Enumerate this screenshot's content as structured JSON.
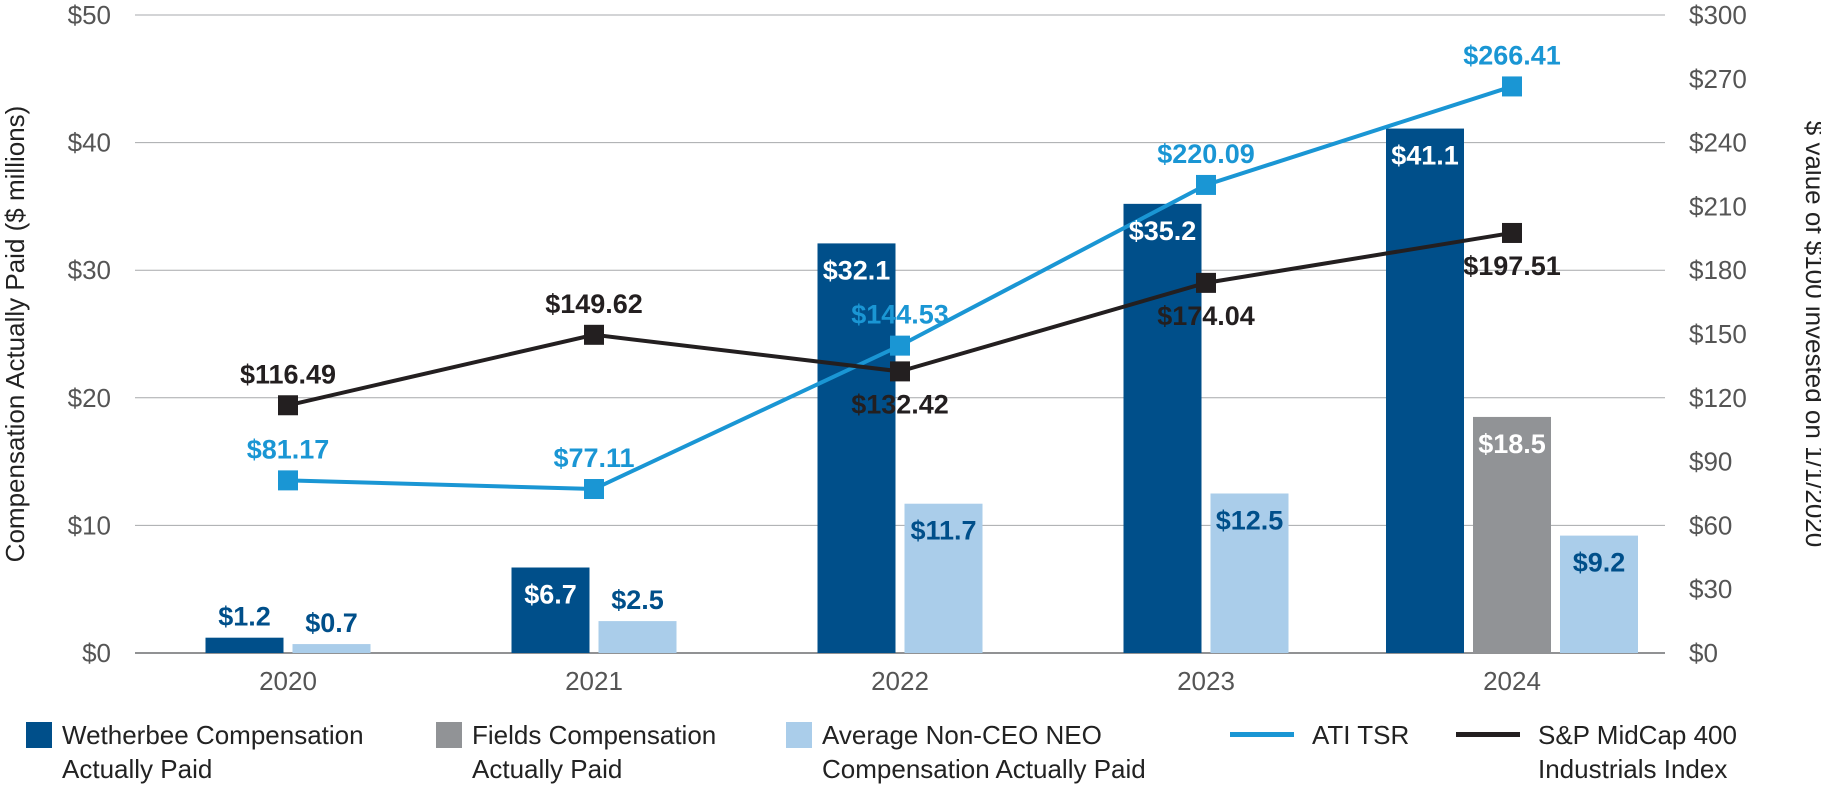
{
  "chart_data": {
    "type": "bar",
    "categories": [
      "2020",
      "2021",
      "2022",
      "2023",
      "2024"
    ],
    "y_left": {
      "label": "Compensation Actually Paid ($ millions)",
      "range": [
        0,
        50
      ],
      "ticks": [
        0,
        10,
        20,
        30,
        40,
        50
      ],
      "tick_labels": [
        "$0",
        "$10",
        "$20",
        "$30",
        "$40",
        "$50"
      ]
    },
    "y_right": {
      "label": "$ value of $100 invested on 1/1/2020",
      "range": [
        0,
        300
      ],
      "ticks": [
        0,
        30,
        60,
        90,
        120,
        150,
        180,
        210,
        240,
        270,
        300
      ],
      "tick_labels": [
        "$0",
        "$30",
        "$60",
        "$90",
        "$120",
        "$150",
        "$180",
        "$210",
        "$240",
        "$270",
        "$300"
      ]
    },
    "grid": true,
    "bar_series": [
      {
        "name": "Wetherbee Compensation Actually Paid",
        "color": "#004f8a",
        "label_color_inside": "#ffffff",
        "label_color_outside": "#004f8a",
        "values": [
          1.2,
          6.7,
          32.1,
          35.2,
          41.1
        ],
        "labels": [
          "$1.2",
          "$6.7",
          "$32.1",
          "$35.2",
          "$41.1"
        ]
      },
      {
        "name": "Fields Compensation Actually Paid",
        "color": "#919396",
        "label_color_inside": "#ffffff",
        "label_color_outside": "#919396",
        "values": [
          null,
          null,
          null,
          null,
          18.5
        ],
        "labels": [
          "",
          "",
          "",
          "",
          "$18.5"
        ]
      },
      {
        "name": "Average Non-CEO NEO Compensation Actually Paid",
        "color": "#aacdea",
        "label_color_inside": "#004f8a",
        "label_color_outside": "#004f8a",
        "values": [
          0.7,
          2.5,
          11.7,
          12.5,
          9.2
        ],
        "labels": [
          "$0.7",
          "$2.5",
          "$11.7",
          "$12.5",
          "$9.2"
        ]
      }
    ],
    "line_series": [
      {
        "name": "ATI TSR",
        "color": "#1a96d4",
        "axis": "right",
        "values": [
          81.17,
          77.11,
          144.53,
          220.09,
          266.41
        ],
        "labels": [
          "$81.17",
          "$77.11",
          "$144.53",
          "$220.09",
          "$266.41"
        ]
      },
      {
        "name": "S&P MidCap 400 Industrials Index",
        "color": "#231f20",
        "axis": "right",
        "values": [
          116.49,
          149.62,
          132.42,
          174.04,
          197.51
        ],
        "labels": [
          "$116.49",
          "$149.62",
          "$132.42",
          "$174.04",
          "$197.51"
        ]
      }
    ],
    "legend_position": "bottom"
  },
  "legend": [
    {
      "type": "swatch",
      "color": "#004f8a",
      "line1": "Wetherbee Compensation",
      "line2": "Actually Paid"
    },
    {
      "type": "swatch",
      "color": "#919396",
      "line1": "Fields Compensation",
      "line2": "Actually Paid"
    },
    {
      "type": "swatch",
      "color": "#aacdea",
      "line1": "Average Non-CEO NEO",
      "line2": "Compensation Actually Paid"
    },
    {
      "type": "line",
      "color": "#1a96d4",
      "line1": "ATI TSR",
      "line2": ""
    },
    {
      "type": "line",
      "color": "#231f20",
      "line1": "S&P MidCap 400",
      "line2": "Industrials Index"
    }
  ]
}
